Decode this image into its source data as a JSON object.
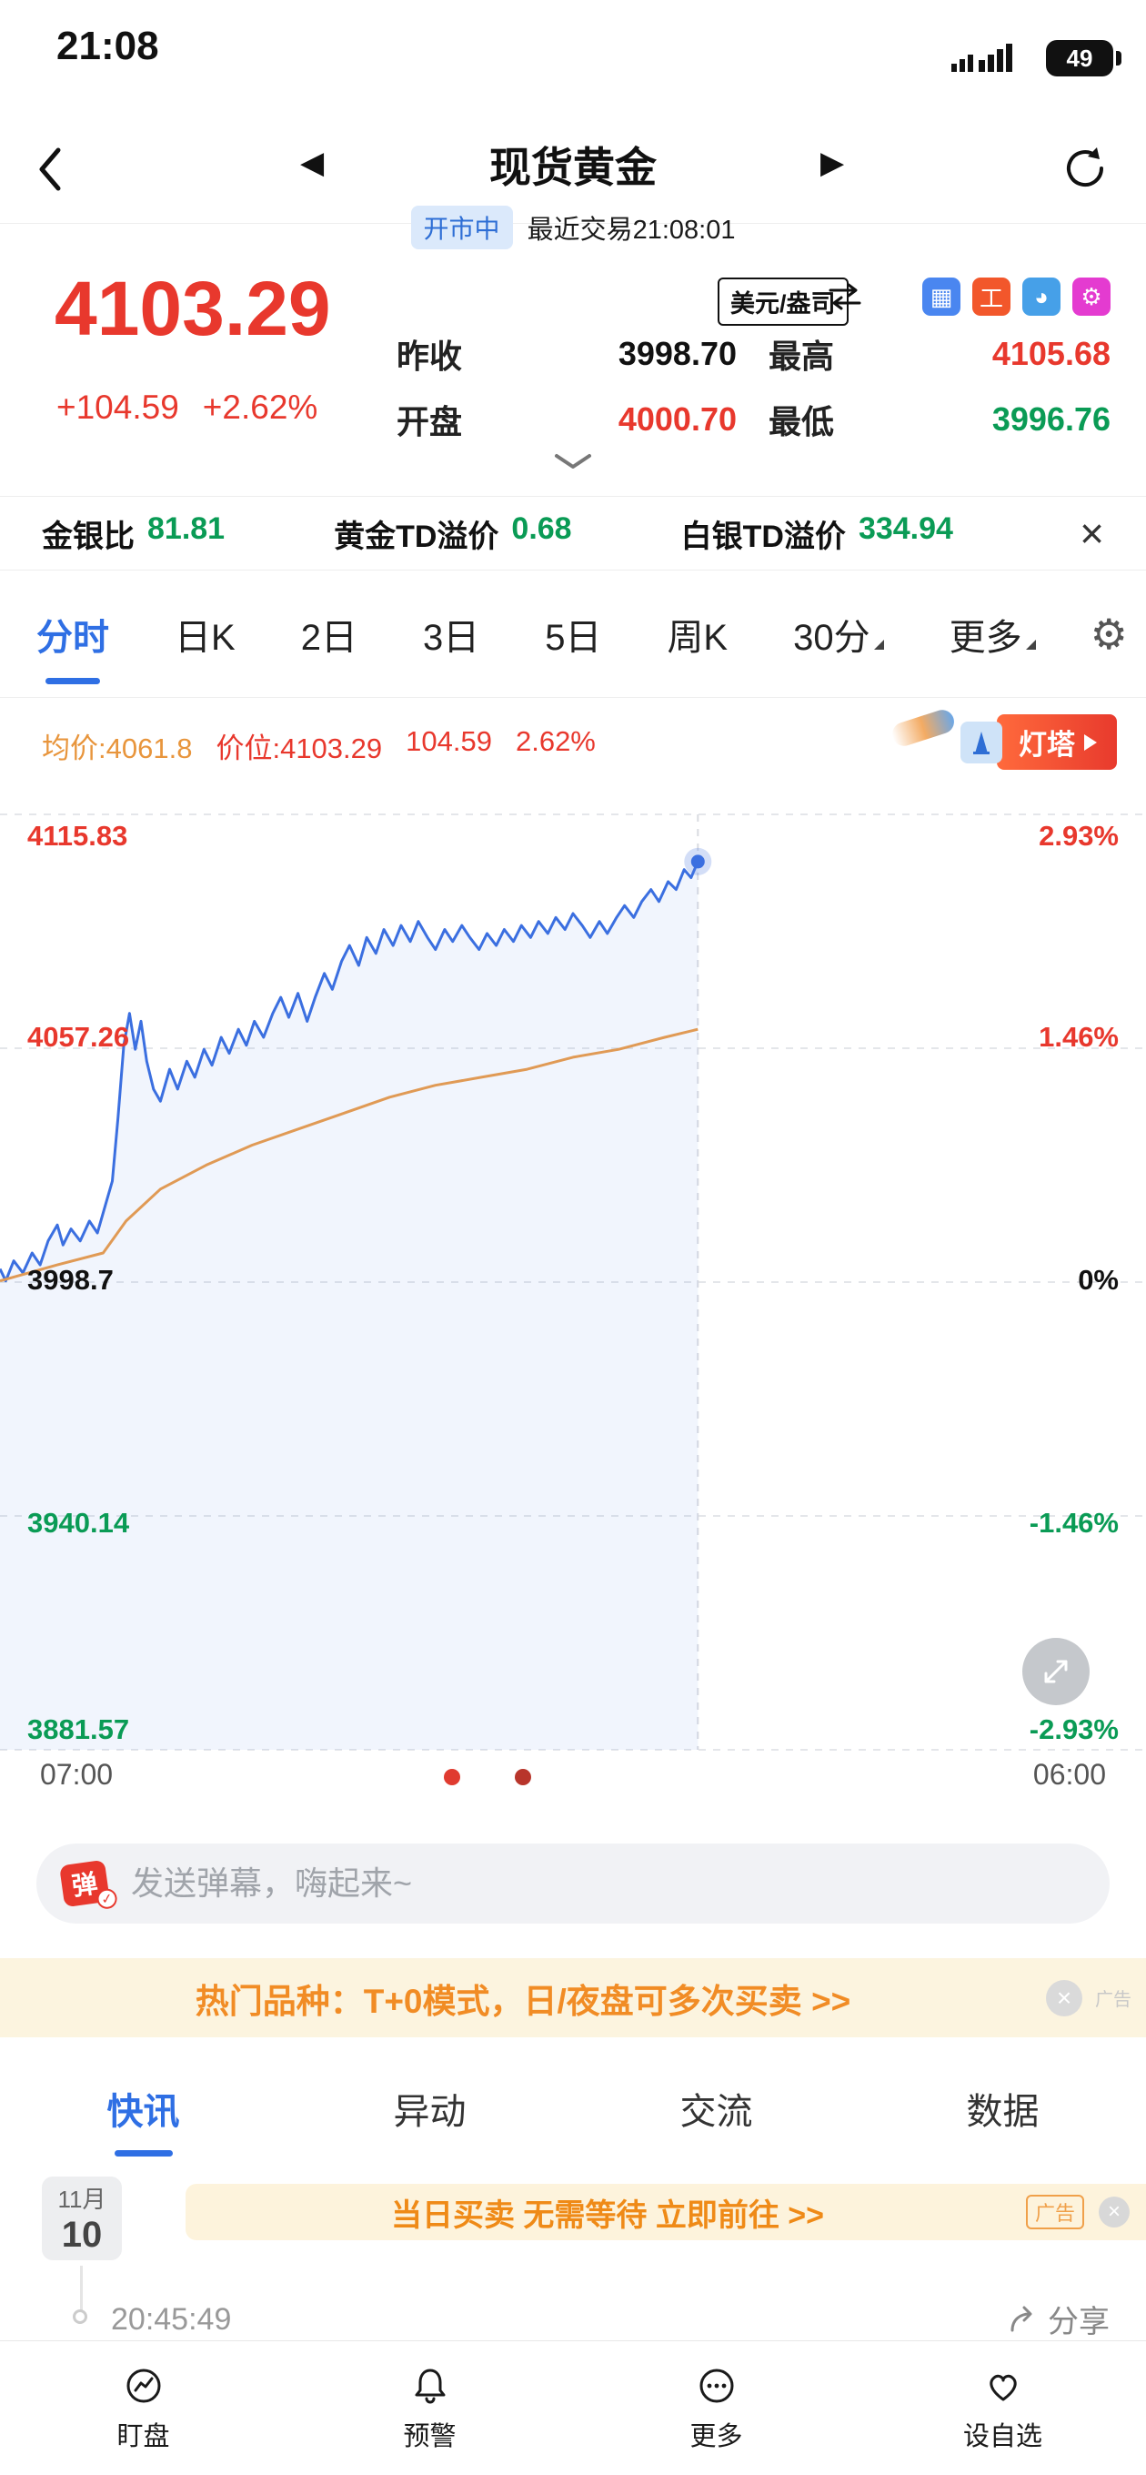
{
  "status_bar": {
    "time": "21:08",
    "battery": "49"
  },
  "nav": {
    "title": "现货黄金",
    "market_status": "开市中",
    "last_trade": "最近交易21:08:01"
  },
  "quote": {
    "price": "4103.29",
    "change": "+104.59",
    "change_pct": "+2.62%",
    "unit": "美元/盎司",
    "fields": {
      "prev_close_label": "昨收",
      "prev_close": "3998.70",
      "open_label": "开盘",
      "open": "4000.70",
      "high_label": "最高",
      "high": "4105.68",
      "low_label": "最低",
      "low": "3996.76"
    }
  },
  "ratio_bar": {
    "item1_label": "金银比",
    "item1_value": "81.81",
    "item2_label": "黄金TD溢价",
    "item2_value": "0.68",
    "item3_label": "白银TD溢价",
    "item3_value": "334.94"
  },
  "period_tabs": {
    "t0": "分时",
    "t1": "日K",
    "t2": "2日",
    "t3": "3日",
    "t4": "5日",
    "t5": "周K",
    "t6": "30分",
    "t7": "更多"
  },
  "chart_info": {
    "avg_label": "均价:",
    "avg_value": "4061.8",
    "price_label": "价位:",
    "price_value": "4103.29",
    "change": "104.59",
    "change_pct": "2.62%",
    "beacon_label": "灯塔"
  },
  "chart_data": {
    "type": "line",
    "title": "现货黄金 分时图",
    "y_range": [
      3881.57,
      4115.83
    ],
    "prev_close": 3998.7,
    "gridlines": [
      4115.83,
      4057.26,
      3998.7,
      3940.14,
      3881.57
    ],
    "y_left_labels": [
      "4115.83",
      "4057.26",
      "3998.7",
      "3940.14",
      "3881.57"
    ],
    "y_right_labels": [
      "2.93%",
      "1.46%",
      "0%",
      "-1.46%",
      "-2.93%"
    ],
    "x_labels": [
      "07:00",
      "06:00"
    ],
    "current_x": 0.609,
    "legend_position": "none",
    "series": [
      {
        "name": "价格",
        "color": "#3b6fe0",
        "points": [
          [
            0.0,
            4002
          ],
          [
            0.005,
            3999
          ],
          [
            0.012,
            4004
          ],
          [
            0.02,
            4001
          ],
          [
            0.028,
            4006
          ],
          [
            0.035,
            4003
          ],
          [
            0.042,
            4009
          ],
          [
            0.05,
            4013
          ],
          [
            0.055,
            4008
          ],
          [
            0.062,
            4012
          ],
          [
            0.07,
            4009
          ],
          [
            0.078,
            4014
          ],
          [
            0.085,
            4011
          ],
          [
            0.092,
            4018
          ],
          [
            0.098,
            4024
          ],
          [
            0.103,
            4040
          ],
          [
            0.108,
            4058
          ],
          [
            0.113,
            4066
          ],
          [
            0.118,
            4057
          ],
          [
            0.123,
            4064
          ],
          [
            0.128,
            4054
          ],
          [
            0.134,
            4047
          ],
          [
            0.14,
            4044
          ],
          [
            0.148,
            4052
          ],
          [
            0.155,
            4047
          ],
          [
            0.163,
            4054
          ],
          [
            0.17,
            4050
          ],
          [
            0.178,
            4057
          ],
          [
            0.185,
            4053
          ],
          [
            0.193,
            4060
          ],
          [
            0.2,
            4056
          ],
          [
            0.208,
            4062
          ],
          [
            0.215,
            4058
          ],
          [
            0.222,
            4064
          ],
          [
            0.23,
            4060
          ],
          [
            0.238,
            4066
          ],
          [
            0.245,
            4070
          ],
          [
            0.252,
            4065
          ],
          [
            0.26,
            4071
          ],
          [
            0.268,
            4064
          ],
          [
            0.275,
            4070
          ],
          [
            0.283,
            4076
          ],
          [
            0.29,
            4072
          ],
          [
            0.298,
            4079
          ],
          [
            0.305,
            4083
          ],
          [
            0.313,
            4078
          ],
          [
            0.32,
            4085
          ],
          [
            0.328,
            4081
          ],
          [
            0.335,
            4087
          ],
          [
            0.343,
            4083
          ],
          [
            0.35,
            4088
          ],
          [
            0.358,
            4084
          ],
          [
            0.365,
            4089
          ],
          [
            0.373,
            4085
          ],
          [
            0.38,
            4082
          ],
          [
            0.388,
            4087
          ],
          [
            0.395,
            4084
          ],
          [
            0.403,
            4088
          ],
          [
            0.41,
            4085
          ],
          [
            0.418,
            4082
          ],
          [
            0.425,
            4086
          ],
          [
            0.433,
            4083
          ],
          [
            0.44,
            4087
          ],
          [
            0.448,
            4084
          ],
          [
            0.455,
            4088
          ],
          [
            0.463,
            4085
          ],
          [
            0.47,
            4089
          ],
          [
            0.478,
            4086
          ],
          [
            0.485,
            4090
          ],
          [
            0.493,
            4087
          ],
          [
            0.5,
            4091
          ],
          [
            0.508,
            4088
          ],
          [
            0.515,
            4085
          ],
          [
            0.523,
            4089
          ],
          [
            0.53,
            4086
          ],
          [
            0.538,
            4090
          ],
          [
            0.545,
            4093
          ],
          [
            0.553,
            4090
          ],
          [
            0.56,
            4094
          ],
          [
            0.568,
            4097
          ],
          [
            0.575,
            4094
          ],
          [
            0.583,
            4099
          ],
          [
            0.59,
            4097
          ],
          [
            0.597,
            4102
          ],
          [
            0.603,
            4100
          ],
          [
            0.609,
            4104
          ]
        ]
      },
      {
        "name": "均价",
        "color": "#e09a55",
        "points": [
          [
            0.0,
            3999
          ],
          [
            0.05,
            4003
          ],
          [
            0.09,
            4006
          ],
          [
            0.11,
            4014
          ],
          [
            0.14,
            4022
          ],
          [
            0.18,
            4028
          ],
          [
            0.22,
            4033
          ],
          [
            0.26,
            4037
          ],
          [
            0.3,
            4041
          ],
          [
            0.34,
            4045
          ],
          [
            0.38,
            4048
          ],
          [
            0.42,
            4050
          ],
          [
            0.46,
            4052
          ],
          [
            0.5,
            4055
          ],
          [
            0.54,
            4057
          ],
          [
            0.58,
            4060
          ],
          [
            0.609,
            4062
          ]
        ]
      }
    ]
  },
  "danmaku": {
    "badge": "弹",
    "placeholder": "发送弹幕，嗨起来~"
  },
  "ad_banner": {
    "text": "热门品种：T+0模式，日/夜盘可多次买卖 >>",
    "tag": "广告"
  },
  "content_tabs": {
    "t0": "快讯",
    "t1": "异动",
    "t2": "交流",
    "t3": "数据"
  },
  "news": {
    "date_month": "11月",
    "date_day": "10",
    "ad_text": "当日买卖 无需等待 立即前往 >>",
    "ad_tag": "广告",
    "time": "20:45:49",
    "share": "分享"
  },
  "bottom_nav": {
    "i0": "盯盘",
    "i1": "预警",
    "i2": "更多",
    "i3": "设自选"
  }
}
